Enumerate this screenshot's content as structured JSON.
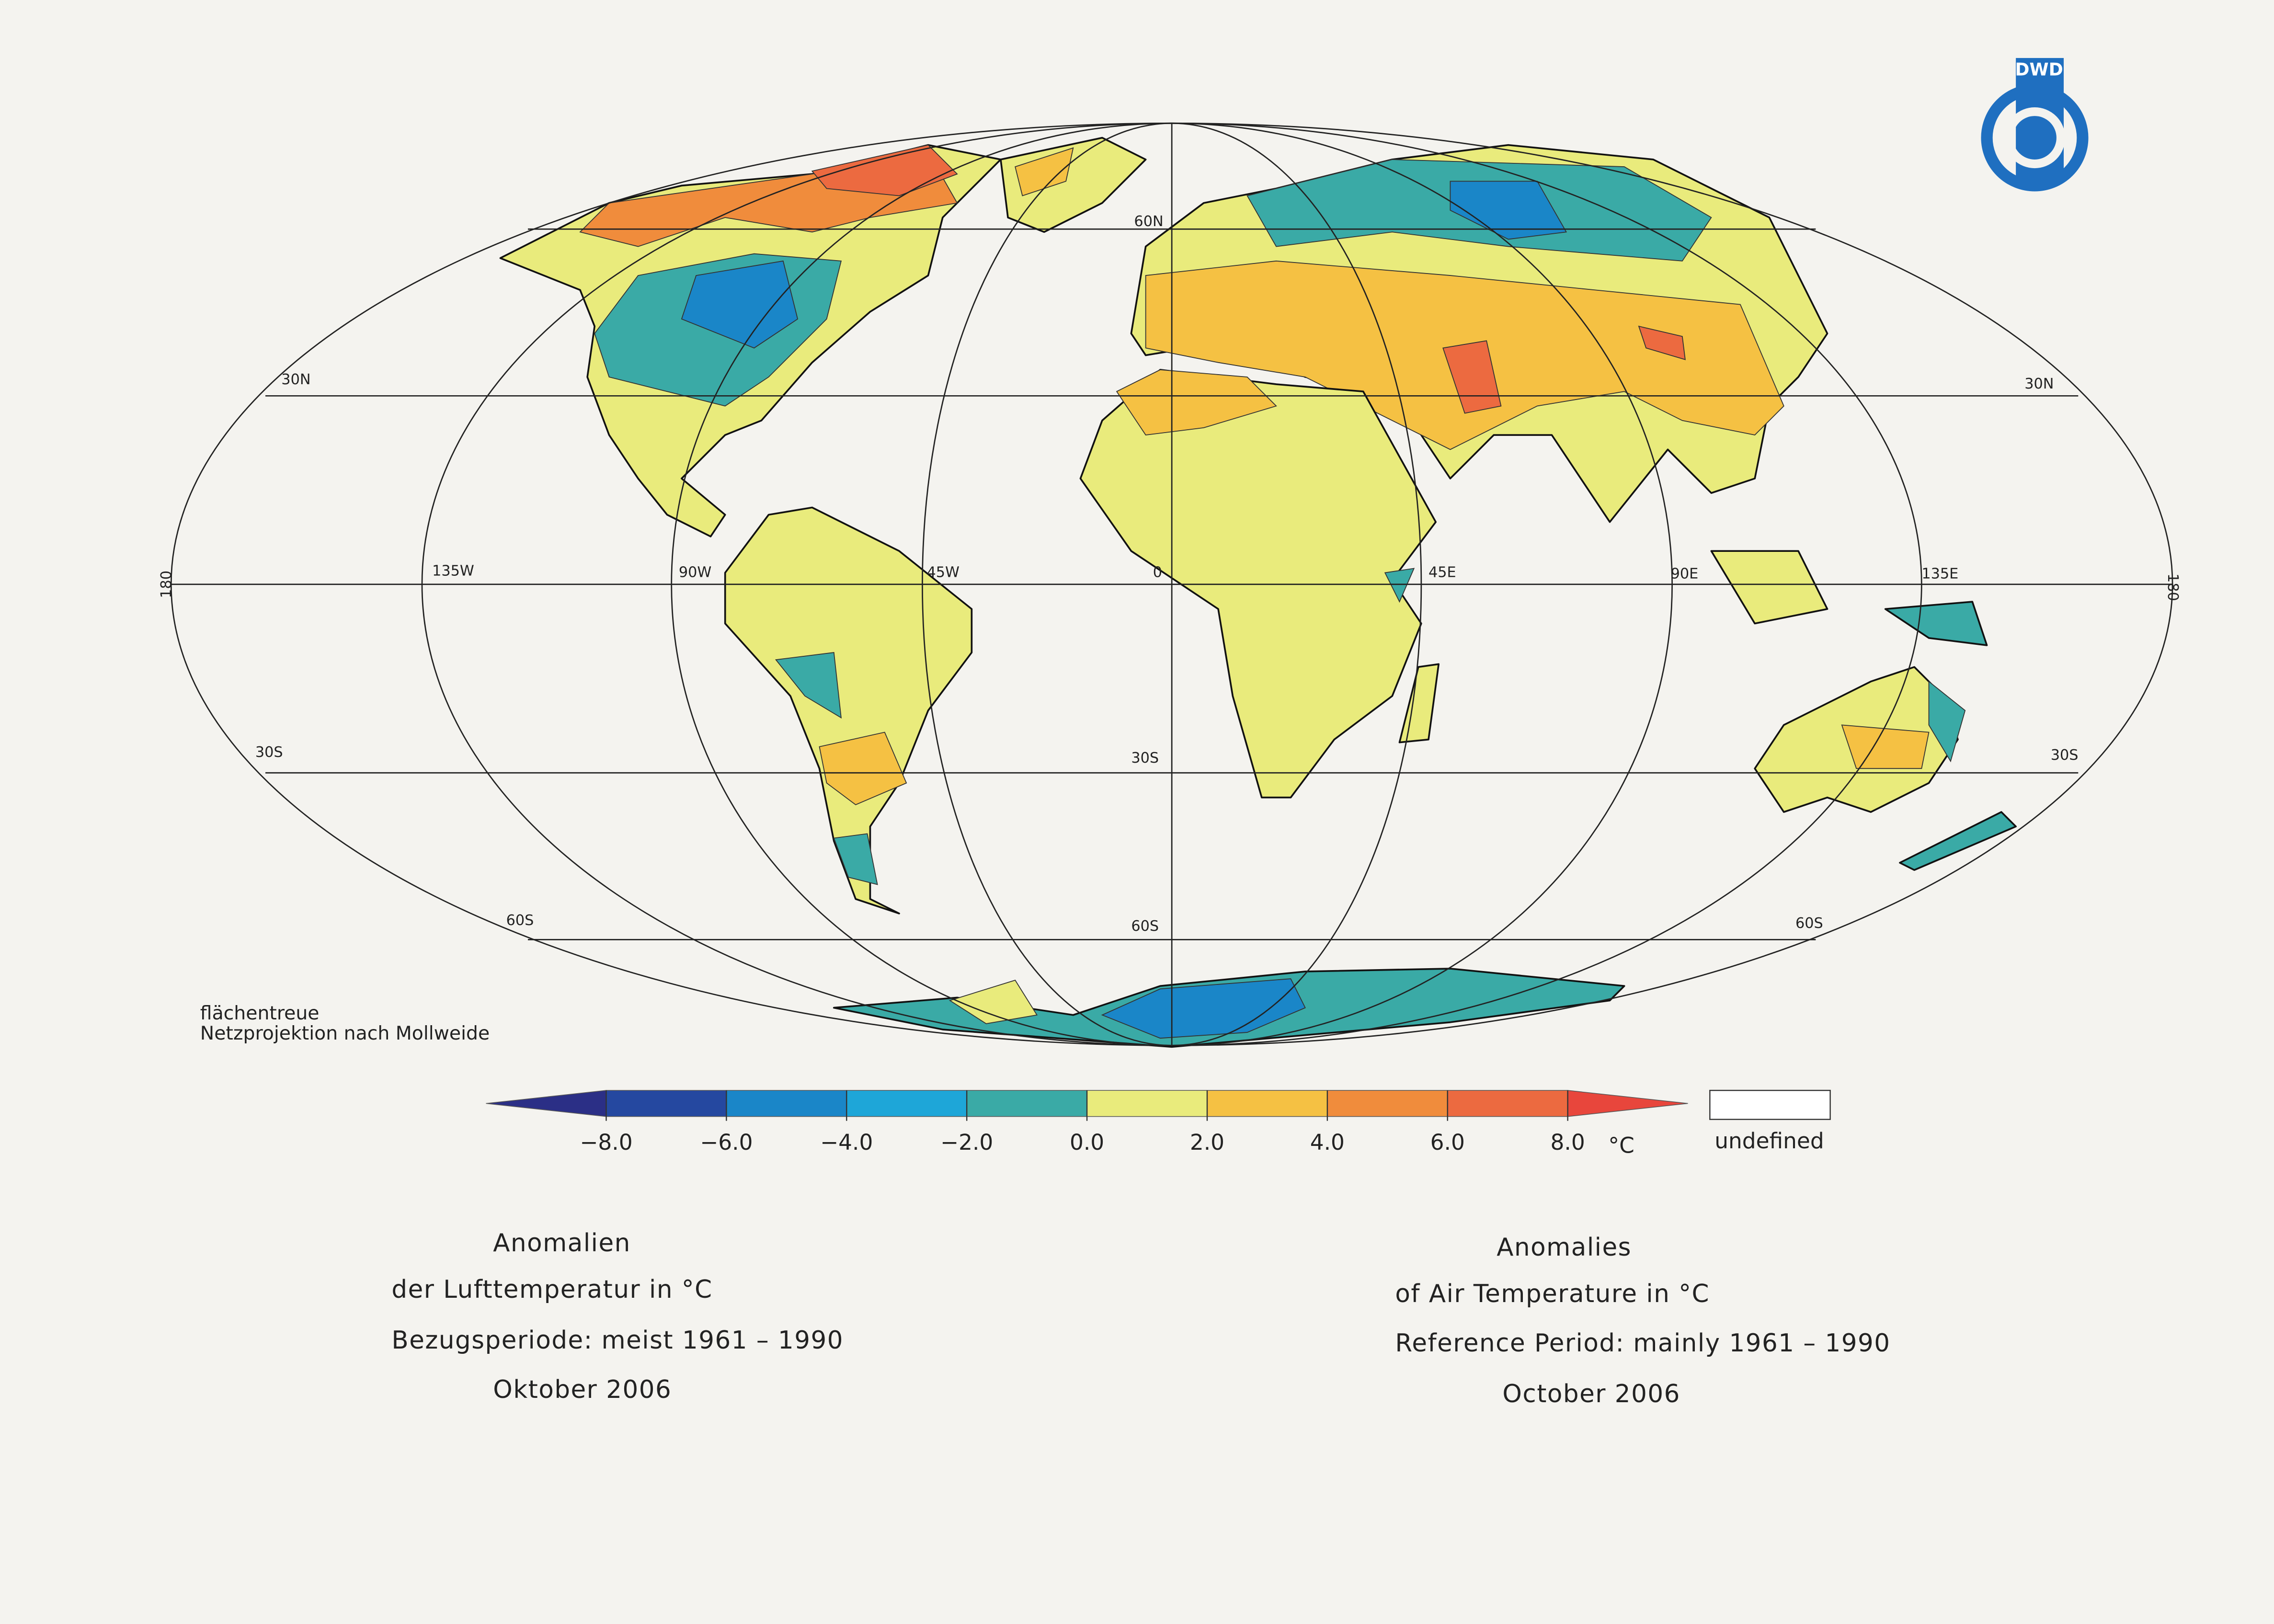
{
  "logo": "DWD",
  "graticule_labels": [
    "30N",
    "30N",
    "60N",
    "30S",
    "30S",
    "30S",
    "60S",
    "60S",
    "60S",
    "180",
    "180",
    "135W",
    "90W",
    "45W",
    "0",
    "45E",
    "90E",
    "135E"
  ],
  "projection_note": [
    "flächentreue",
    "Netzprojektion nach Mollweide"
  ],
  "legend": {
    "ticks": [
      {
        "value": -8,
        "label": "−8.0"
      },
      {
        "value": -6,
        "label": "−6.0"
      },
      {
        "value": -4,
        "label": "−4.0"
      },
      {
        "value": -2,
        "label": "−2.0"
      },
      {
        "value": 0,
        "label": "0.0"
      },
      {
        "value": 2,
        "label": "2.0"
      },
      {
        "value": 4,
        "label": "4.0"
      },
      {
        "value": 6,
        "label": "6.0"
      },
      {
        "value": 8,
        "label": "8.0"
      }
    ],
    "unit": "°C",
    "colors": [
      "#2b2f86",
      "#2548a0",
      "#1a86c8",
      "#1ea6d8",
      "#3aaaa6",
      "#e9eb7c",
      "#f5c143",
      "#f08c3c",
      "#ec6a40",
      "#e8463c"
    ],
    "undefined_label": "undefined"
  },
  "caption_de": [
    "Anomalien",
    "der Lufttemperatur in °C",
    "Bezugsperiode: meist 1961 – 1990",
    "Oktober 2006"
  ],
  "caption_en": [
    "Anomalies",
    "of Air Temperature in °C",
    "Reference Period: mainly 1961 – 1990",
    "October 2006"
  ]
}
